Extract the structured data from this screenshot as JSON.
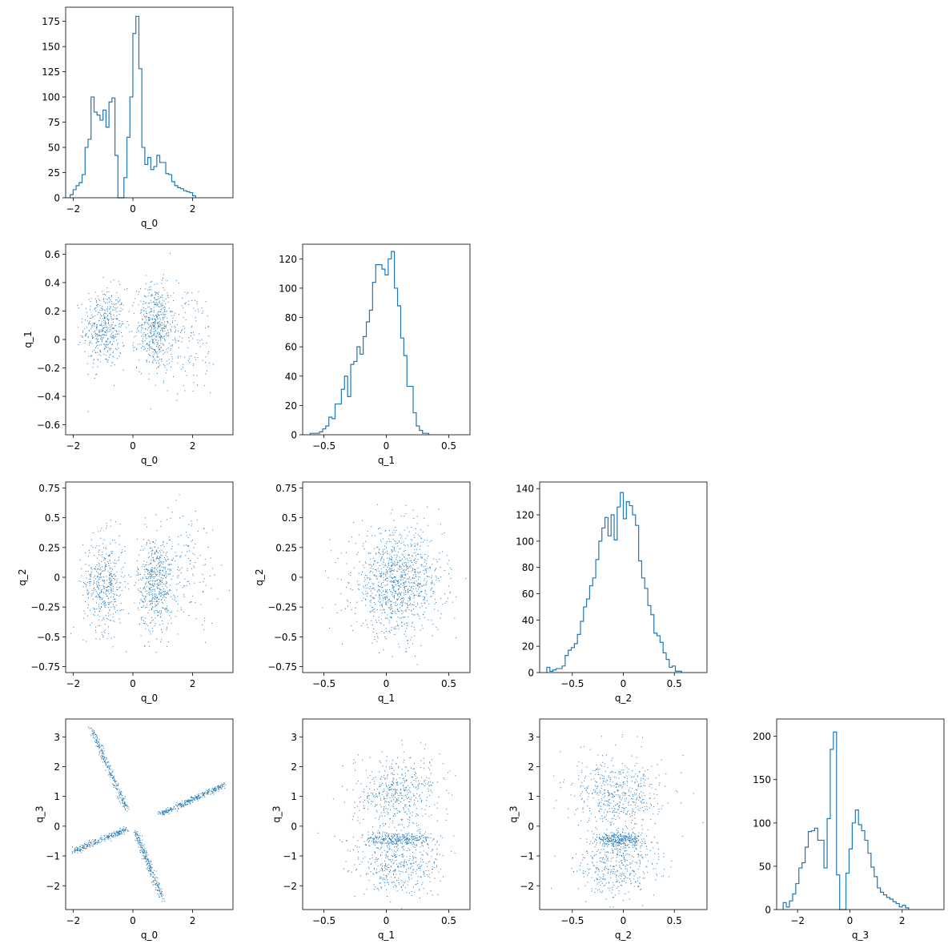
{
  "figure": {
    "type": "corner-plot",
    "variables": [
      "q_0",
      "q_1",
      "q_2",
      "q_3"
    ],
    "colors": {
      "series": "#1f77b4",
      "axes": "#000000",
      "background": "#ffffff"
    }
  },
  "chart_data": [
    {
      "type": "histogram",
      "row": 0,
      "col": 0,
      "xlabel": "q_0",
      "ylabel": "",
      "xlim": [
        -2.25,
        3.35
      ],
      "ylim": [
        0,
        189
      ],
      "xticks": [
        -2,
        0,
        2
      ],
      "yticks": [
        0,
        25,
        50,
        75,
        100,
        125,
        150,
        175
      ],
      "bin_start": -2.1,
      "bin_width": 0.1,
      "counts": [
        3,
        8,
        12,
        15,
        23,
        50,
        58,
        100,
        85,
        82,
        77,
        87,
        70,
        95,
        99,
        42,
        0,
        0,
        20,
        60,
        100,
        163,
        180,
        128,
        50,
        33,
        40,
        28,
        31,
        42,
        35,
        35,
        24,
        23,
        16,
        12,
        10,
        9,
        7,
        6,
        5,
        2
      ]
    },
    {
      "type": "histogram",
      "row": 1,
      "col": 1,
      "xlabel": "q_1",
      "ylabel": "",
      "xlim": [
        -0.67,
        0.67
      ],
      "ylim": [
        0,
        130
      ],
      "xticks": [
        -0.5,
        0,
        0.5
      ],
      "yticks": [
        0,
        20,
        40,
        60,
        80,
        100,
        120
      ],
      "bin_start": -0.61,
      "bin_width": 0.025,
      "counts": [
        1,
        1,
        1,
        2,
        4,
        6,
        12,
        11,
        21,
        21,
        31,
        40,
        26,
        48,
        50,
        60,
        55,
        67,
        77,
        85,
        104,
        116,
        116,
        113,
        109,
        120,
        125,
        100,
        88,
        66,
        54,
        33,
        33,
        15,
        6,
        3,
        1,
        1
      ]
    },
    {
      "type": "histogram",
      "row": 2,
      "col": 2,
      "xlabel": "q_2",
      "ylabel": "",
      "xlim": [
        -0.82,
        0.82
      ],
      "ylim": [
        0,
        145
      ],
      "xticks": [
        -0.5,
        0,
        0.5
      ],
      "yticks": [
        0,
        20,
        40,
        60,
        80,
        100,
        120,
        140
      ],
      "bin_start": -0.75,
      "bin_width": 0.03,
      "counts": [
        4,
        1,
        2,
        3,
        3,
        5,
        13,
        17,
        19,
        22,
        29,
        39,
        50,
        56,
        66,
        72,
        86,
        100,
        110,
        118,
        104,
        120,
        101,
        126,
        137,
        117,
        130,
        127,
        120,
        112,
        85,
        72,
        64,
        51,
        44,
        30,
        28,
        23,
        15,
        10,
        4,
        5,
        1,
        1
      ]
    },
    {
      "type": "histogram",
      "row": 3,
      "col": 3,
      "xlabel": "q_3",
      "ylabel": "",
      "xlim": [
        -2.8,
        3.6
      ],
      "ylim": [
        0,
        220
      ],
      "xticks": [
        -2,
        0,
        2
      ],
      "yticks": [
        0,
        50,
        100,
        150,
        200
      ],
      "bin_start": -2.55,
      "bin_width": 0.12,
      "counts": [
        8,
        3,
        10,
        18,
        30,
        48,
        54,
        72,
        90,
        91,
        94,
        80,
        80,
        48,
        105,
        185,
        205,
        40,
        0,
        0,
        42,
        70,
        100,
        115,
        98,
        91,
        80,
        65,
        49,
        38,
        25,
        20,
        17,
        14,
        12,
        9,
        7,
        3,
        5,
        2
      ]
    },
    {
      "type": "scatter",
      "row": 1,
      "col": 0,
      "xlabel": "q_0",
      "ylabel": "q_1",
      "xlim": [
        -2.25,
        3.35
      ],
      "ylim": [
        -0.67,
        0.67
      ],
      "xticks": [
        -2,
        0,
        2
      ],
      "yticks": [
        -0.6,
        -0.4,
        -0.2,
        0.0,
        0.2,
        0.4,
        0.6
      ],
      "clusters": [
        {
          "x": [
            -0.95,
            0.35
          ],
          "y": [
            0.08,
            0.14
          ],
          "n": 460
        },
        {
          "x": [
            0.75,
            0.3
          ],
          "y": [
            0.09,
            0.15
          ],
          "n": 520
        },
        {
          "x": [
            1.8,
            0.55
          ],
          "y": [
            0.0,
            0.2
          ],
          "n": 150
        }
      ]
    },
    {
      "type": "scatter",
      "row": 2,
      "col": 0,
      "xlabel": "q_0",
      "ylabel": "q_2",
      "xlim": [
        -2.25,
        3.35
      ],
      "ylim": [
        -0.8,
        0.8
      ],
      "xticks": [
        -2,
        0,
        2
      ],
      "yticks": [
        -0.75,
        -0.5,
        -0.25,
        0.0,
        0.25,
        0.5,
        0.75
      ],
      "clusters": [
        {
          "x": [
            -0.95,
            0.35
          ],
          "y": [
            -0.05,
            0.2
          ],
          "n": 460
        },
        {
          "x": [
            0.75,
            0.3
          ],
          "y": [
            -0.05,
            0.2
          ],
          "n": 520
        },
        {
          "x": [
            1.8,
            0.55
          ],
          "y": [
            0.1,
            0.25
          ],
          "n": 150
        }
      ]
    },
    {
      "type": "scatter",
      "row": 2,
      "col": 1,
      "xlabel": "q_1",
      "ylabel": "q_2",
      "xlim": [
        -0.67,
        0.67
      ],
      "ylim": [
        -0.8,
        0.8
      ],
      "xticks": [
        -0.5,
        0,
        0.5
      ],
      "yticks": [
        -0.75,
        -0.5,
        -0.25,
        0.0,
        0.25,
        0.5,
        0.75
      ],
      "clusters": [
        {
          "x": [
            0.09,
            0.18
          ],
          "y": [
            -0.05,
            0.22
          ],
          "n": 1100
        }
      ]
    },
    {
      "type": "scatter",
      "row": 3,
      "col": 0,
      "xlabel": "q_0",
      "ylabel": "q_3",
      "xlim": [
        -2.25,
        3.35
      ],
      "ylim": [
        -2.8,
        3.6
      ],
      "xticks": [
        -2,
        0,
        2
      ],
      "yticks": [
        -2,
        -1,
        0,
        1,
        2,
        3
      ],
      "lines": [
        {
          "from": [
            -1.4,
            3.3
          ],
          "to": [
            -0.2,
            0.55
          ],
          "n": 260,
          "spread": 0.05
        },
        {
          "from": [
            0.1,
            -0.2
          ],
          "to": [
            1.0,
            -2.5
          ],
          "n": 260,
          "spread": 0.05
        },
        {
          "from": [
            0.9,
            0.4
          ],
          "to": [
            3.1,
            1.4
          ],
          "n": 320,
          "spread": 0.05
        },
        {
          "from": [
            -2.0,
            -0.85
          ],
          "to": [
            -0.2,
            -0.1
          ],
          "n": 250,
          "spread": 0.05
        }
      ]
    },
    {
      "type": "scatter",
      "row": 3,
      "col": 1,
      "xlabel": "q_1",
      "ylabel": "q_3",
      "xlim": [
        -0.67,
        0.67
      ],
      "ylim": [
        -2.8,
        3.6
      ],
      "xticks": [
        -0.5,
        0,
        0.5
      ],
      "yticks": [
        -2,
        -1,
        0,
        1,
        2,
        3
      ],
      "clusters": [
        {
          "x": [
            0.09,
            0.18
          ],
          "y": [
            1.1,
            0.6
          ],
          "n": 520
        },
        {
          "x": [
            0.1,
            0.15
          ],
          "y": [
            -0.45,
            0.12
          ],
          "n": 320
        },
        {
          "x": [
            0.09,
            0.18
          ],
          "y": [
            -1.3,
            0.5
          ],
          "n": 420
        }
      ]
    },
    {
      "type": "scatter",
      "row": 3,
      "col": 2,
      "xlabel": "q_2",
      "ylabel": "q_3",
      "xlim": [
        -0.82,
        0.82
      ],
      "ylim": [
        -2.8,
        3.6
      ],
      "xticks": [
        -0.5,
        0,
        0.5
      ],
      "yticks": [
        -2,
        -1,
        0,
        1,
        2,
        3
      ],
      "clusters": [
        {
          "x": [
            -0.05,
            0.22
          ],
          "y": [
            1.1,
            0.6
          ],
          "n": 520
        },
        {
          "x": [
            -0.05,
            0.12
          ],
          "y": [
            -0.45,
            0.12
          ],
          "n": 320
        },
        {
          "x": [
            -0.05,
            0.2
          ],
          "y": [
            -1.3,
            0.5
          ],
          "n": 420
        }
      ]
    }
  ]
}
